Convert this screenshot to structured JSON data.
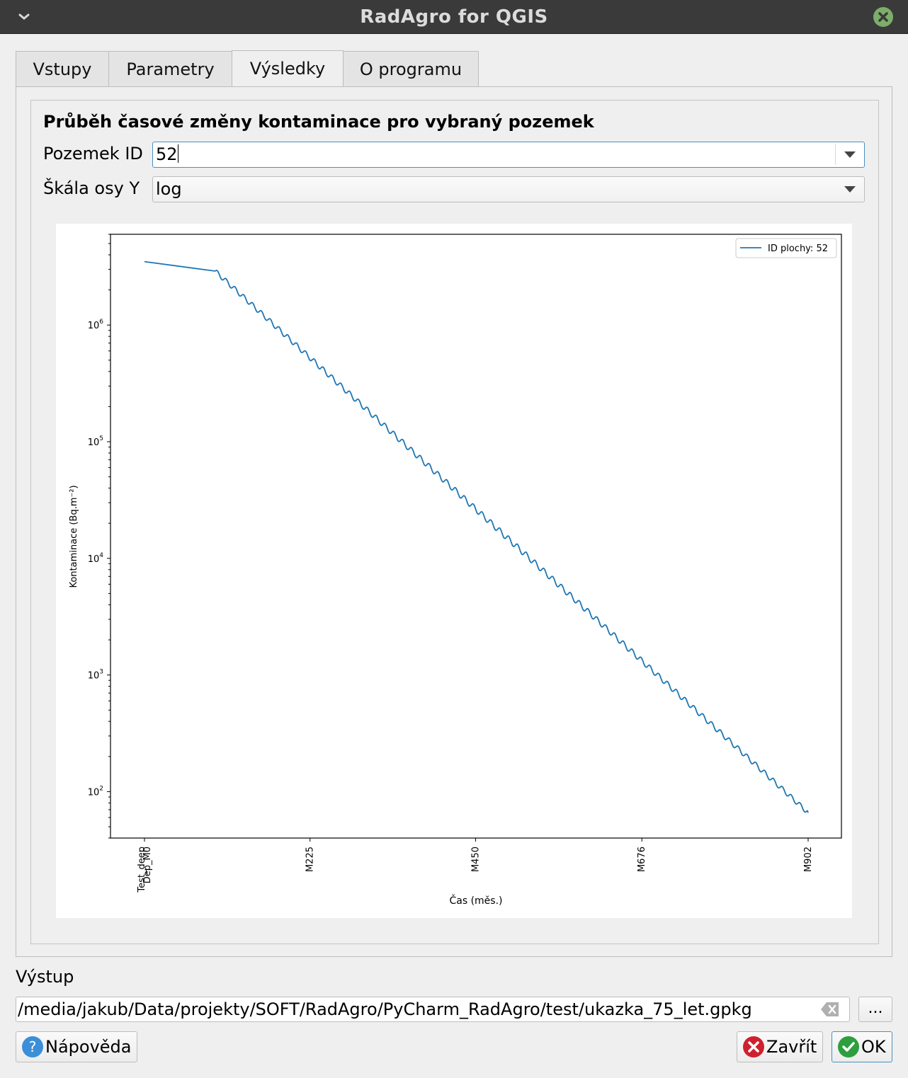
{
  "window": {
    "title": "RadAgro for QGIS"
  },
  "tabs": [
    {
      "label": "Vstupy",
      "active": false
    },
    {
      "label": "Parametry",
      "active": false
    },
    {
      "label": "Výsledky",
      "active": true
    },
    {
      "label": "O programu",
      "active": false
    }
  ],
  "results": {
    "heading": "Průběh časové změny kontaminace pro vybraný pozemek",
    "parcel_label": "Pozemek ID",
    "parcel_value": "52",
    "scale_label": "Škála osy Y",
    "scale_value": "log"
  },
  "chart_data": {
    "type": "line",
    "xlabel": "Čas (měs.)",
    "ylabel": "Kontaminace (Bq.m⁻²)",
    "x_ticks": [
      "Test_deep",
      "Dep_M0",
      "M225",
      "M450",
      "M676",
      "M902"
    ],
    "y_scale": "log",
    "y_ticks": [
      "10",
      "10",
      "10",
      "10",
      "10"
    ],
    "y_tick_exponents": [
      "2",
      "3",
      "4",
      "5",
      "6"
    ],
    "ylim": [
      40,
      6000000
    ],
    "legend_position": "top-right",
    "series": [
      {
        "name": "ID plochy: 52",
        "color": "#1f77b4",
        "start_value": 3500000,
        "plateau_month": 96,
        "plateau_value": 2900000,
        "end_month": 902,
        "end_value": 66,
        "step_period_months": 12
      }
    ]
  },
  "output": {
    "label": "Výstup",
    "path": "/media/jakub/Data/projekty/SOFT/RadAgro/PyCharm_RadAgro/test/ukazka_75_let.gpkg",
    "browse_label": "..."
  },
  "buttons": {
    "help": "Nápověda",
    "close": "Zavřít",
    "ok": "OK"
  },
  "colors": {
    "titlebar": "#3a3a3a",
    "close_green": "#7cae6a",
    "line": "#1f77b4",
    "focus": "#4a8fc0",
    "cancel_red": "#d0202e",
    "ok_green": "#2e9e3e",
    "help_blue": "#3b8fd8"
  }
}
